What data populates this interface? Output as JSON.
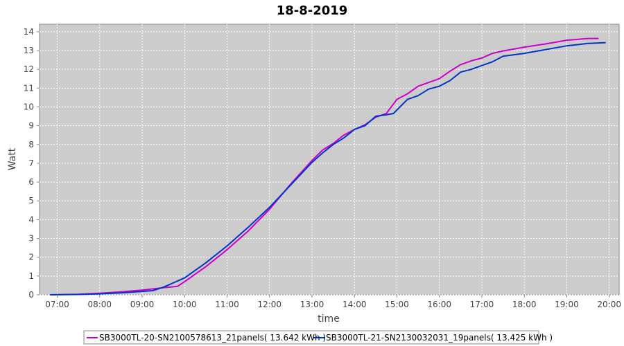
{
  "chart_data": {
    "type": "line",
    "title": "18-8-2019",
    "xlabel": "time",
    "ylabel": "Watt",
    "ylim": [
      0,
      14.4
    ],
    "yticks": [
      "0",
      "1",
      "2",
      "3",
      "4",
      "5",
      "6",
      "7",
      "8",
      "9",
      "10",
      "11",
      "12",
      "13",
      "14"
    ],
    "xticks": [
      "07:00",
      "08:00",
      "09:00",
      "10:00",
      "11:00",
      "12:00",
      "13:00",
      "14:00",
      "15:00",
      "16:00",
      "17:00",
      "18:00",
      "19:00",
      "20:00"
    ],
    "grid": true,
    "legend_position": "bottom",
    "background_color": "#cccccc",
    "series": [
      {
        "name": "SB3000TL-20-SN2100578613_21panels( 13.642 kWh )",
        "color": "#cc00cc",
        "points": [
          [
            "06:50",
            0.0
          ],
          [
            "07:30",
            0.03
          ],
          [
            "08:00",
            0.08
          ],
          [
            "08:30",
            0.16
          ],
          [
            "09:00",
            0.25
          ],
          [
            "09:30",
            0.38
          ],
          [
            "09:50",
            0.45
          ],
          [
            "10:00",
            0.7
          ],
          [
            "10:30",
            1.5
          ],
          [
            "11:00",
            2.4
          ],
          [
            "11:30",
            3.4
          ],
          [
            "12:00",
            4.55
          ],
          [
            "12:30",
            5.9
          ],
          [
            "13:00",
            7.15
          ],
          [
            "13:15",
            7.7
          ],
          [
            "13:30",
            8.05
          ],
          [
            "13:45",
            8.5
          ],
          [
            "14:00",
            8.8
          ],
          [
            "14:15",
            9.05
          ],
          [
            "14:30",
            9.45
          ],
          [
            "14:45",
            9.65
          ],
          [
            "15:00",
            10.4
          ],
          [
            "15:15",
            10.7
          ],
          [
            "15:30",
            11.1
          ],
          [
            "16:00",
            11.5
          ],
          [
            "16:15",
            11.9
          ],
          [
            "16:30",
            12.25
          ],
          [
            "16:45",
            12.45
          ],
          [
            "17:00",
            12.6
          ],
          [
            "17:15",
            12.85
          ],
          [
            "17:30",
            12.98
          ],
          [
            "18:00",
            13.18
          ],
          [
            "18:30",
            13.35
          ],
          [
            "19:00",
            13.55
          ],
          [
            "19:30",
            13.64
          ],
          [
            "19:45",
            13.64
          ]
        ]
      },
      {
        "name": "SB3000TL-21-SN2130032031_19panels( 13.425 kWh )",
        "color": "#0033cc",
        "points": [
          [
            "06:50",
            0.0
          ],
          [
            "07:30",
            0.02
          ],
          [
            "08:00",
            0.05
          ],
          [
            "08:30",
            0.1
          ],
          [
            "09:00",
            0.18
          ],
          [
            "09:15",
            0.22
          ],
          [
            "09:30",
            0.4
          ],
          [
            "10:00",
            0.9
          ],
          [
            "10:30",
            1.7
          ],
          [
            "11:00",
            2.6
          ],
          [
            "11:30",
            3.6
          ],
          [
            "12:00",
            4.65
          ],
          [
            "12:30",
            5.85
          ],
          [
            "13:00",
            7.05
          ],
          [
            "13:15",
            7.55
          ],
          [
            "13:30",
            8.0
          ],
          [
            "13:45",
            8.35
          ],
          [
            "14:00",
            8.8
          ],
          [
            "14:15",
            9.0
          ],
          [
            "14:30",
            9.5
          ],
          [
            "14:45",
            9.58
          ],
          [
            "14:55",
            9.65
          ],
          [
            "15:15",
            10.4
          ],
          [
            "15:30",
            10.6
          ],
          [
            "15:45",
            10.95
          ],
          [
            "16:00",
            11.1
          ],
          [
            "16:15",
            11.4
          ],
          [
            "16:30",
            11.85
          ],
          [
            "16:45",
            12.0
          ],
          [
            "17:00",
            12.2
          ],
          [
            "17:15",
            12.4
          ],
          [
            "17:30",
            12.7
          ],
          [
            "18:00",
            12.85
          ],
          [
            "18:30",
            13.05
          ],
          [
            "19:00",
            13.25
          ],
          [
            "19:30",
            13.38
          ],
          [
            "19:55",
            13.42
          ]
        ]
      }
    ]
  }
}
